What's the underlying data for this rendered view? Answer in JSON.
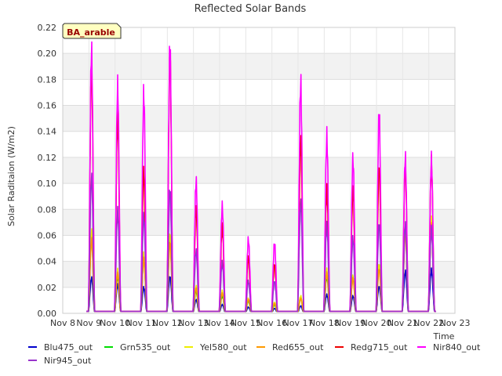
{
  "chart_data": {
    "type": "line",
    "title": "Reflected Solar Bands",
    "ylabel": "Solar Raditaion (W/m2)",
    "xlabel": "Time",
    "badge": "BA_arable",
    "ylim": [
      0.0,
      0.22
    ],
    "yticks": [
      0.0,
      0.02,
      0.04,
      0.06,
      0.08,
      0.1,
      0.12,
      0.14,
      0.16,
      0.18,
      0.2,
      0.22
    ],
    "ytick_labels": [
      "0.00",
      "0.02",
      "0.04",
      "0.06",
      "0.08",
      "0.10",
      "0.12",
      "0.14",
      "0.16",
      "0.18",
      "0.20",
      "0.22"
    ],
    "xlim": [
      8,
      23
    ],
    "xticks": [
      8,
      9,
      10,
      11,
      12,
      13,
      14,
      15,
      16,
      17,
      18,
      19,
      20,
      21,
      22,
      23
    ],
    "xtick_labels": [
      "Nov 8",
      "Nov 9",
      "Nov 10",
      "Nov 11",
      "Nov 12",
      "Nov 13",
      "Nov 14",
      "Nov 15",
      "Nov 16",
      "Nov 17",
      "Nov 18",
      "Nov 19",
      "Nov 20",
      "Nov 21",
      "Nov 22",
      "Nov 23"
    ],
    "grid": true,
    "legend_position": "bottom",
    "day_peaks": {
      "days": [
        9,
        10,
        11,
        12,
        13,
        14,
        15,
        16,
        17,
        18,
        19,
        20,
        21,
        22
      ],
      "series": [
        {
          "name": "Blu475_out",
          "color": "#0000cc",
          "values": [
            0.029,
            0.023,
            0.021,
            0.03,
            0.011,
            0.007,
            0.005,
            0.004,
            0.006,
            0.015,
            0.014,
            0.022,
            0.034,
            0.035
          ]
        },
        {
          "name": "Grn535_out",
          "color": "#00dd00",
          "values": [
            0.062,
            0.03,
            0.045,
            0.06,
            0.018,
            0.014,
            0.01,
            0.007,
            0.012,
            0.03,
            0.03,
            0.04,
            0.069,
            0.072
          ]
        },
        {
          "name": "Yel580_out",
          "color": "#eeee00",
          "values": [
            0.067,
            0.035,
            0.048,
            0.065,
            0.022,
            0.018,
            0.012,
            0.009,
            0.014,
            0.035,
            0.03,
            0.04,
            0.07,
            0.075
          ]
        },
        {
          "name": "Red655_out",
          "color": "#ff9900",
          "values": [
            0.06,
            0.032,
            0.044,
            0.058,
            0.02,
            0.016,
            0.011,
            0.008,
            0.012,
            0.032,
            0.028,
            0.036,
            0.066,
            0.07
          ]
        },
        {
          "name": "Redg715_out",
          "color": "#ee0000",
          "values": [
            0.201,
            0.16,
            0.115,
            0.21,
            0.085,
            0.07,
            0.045,
            0.04,
            0.14,
            0.1,
            0.1,
            0.12,
            0.12,
            0.122
          ]
        },
        {
          "name": "Nir840_out",
          "color": "#ff00ff",
          "values": [
            0.215,
            0.185,
            0.179,
            0.219,
            0.108,
            0.087,
            0.06,
            0.057,
            0.188,
            0.144,
            0.126,
            0.164,
            0.127,
            0.125
          ]
        },
        {
          "name": "Nir945_out",
          "color": "#9933cc",
          "values": [
            0.111,
            0.083,
            0.079,
            0.101,
            0.051,
            0.041,
            0.026,
            0.026,
            0.09,
            0.071,
            0.061,
            0.073,
            0.072,
            0.068
          ]
        }
      ]
    }
  }
}
